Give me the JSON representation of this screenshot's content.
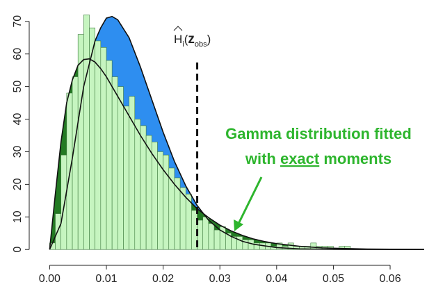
{
  "chart_data": {
    "type": "histogram",
    "bins": [
      0,
      0.001,
      0.002,
      0.003,
      0.004,
      0.005,
      0.006,
      0.007,
      0.008,
      0.009,
      0.01,
      0.011,
      0.012,
      0.013,
      0.014,
      0.015,
      0.016,
      0.017,
      0.018,
      0.019,
      0.02,
      0.021,
      0.022,
      0.023,
      0.024,
      0.025,
      0.026,
      0.027,
      0.028,
      0.029,
      0.03,
      0.031,
      0.032,
      0.033,
      0.034,
      0.035,
      0.036,
      0.037,
      0.038,
      0.039,
      0.04,
      0.041,
      0.042,
      0.043,
      0.044,
      0.045,
      0.046,
      0.047,
      0.048,
      0.049,
      0.05,
      0.051,
      0.052,
      0.053,
      0.054,
      0.055,
      0.056,
      0.057,
      0.058,
      0.059,
      0.06,
      0.061,
      0.062,
      0.063,
      0.064,
      0.065,
      0.066
    ],
    "counts": [
      2,
      11,
      29,
      48,
      53,
      66,
      72,
      68,
      64,
      62,
      58,
      53,
      50,
      44,
      47,
      40,
      38,
      35,
      33,
      30,
      29,
      25,
      22,
      19,
      17,
      12,
      9,
      10,
      8,
      6,
      7,
      5,
      4,
      4,
      3,
      3,
      2,
      2,
      2,
      1,
      2,
      1,
      2,
      1,
      1,
      1,
      2,
      1,
      1,
      1,
      0,
      1,
      1,
      0,
      0,
      0,
      0,
      0,
      0,
      0,
      0,
      0,
      0,
      0,
      0,
      0
    ],
    "color": "#c6f5c0",
    "curves": [
      {
        "color": "#2e8ef0",
        "x": [
          0,
          0.002,
          0.004,
          0.006,
          0.008,
          0.009,
          0.01,
          0.011,
          0.012,
          0.014,
          0.016,
          0.018,
          0.02,
          0.022,
          0.024,
          0.026,
          0.028,
          0.03,
          0.032,
          0.034,
          0.036,
          0.04,
          0.044,
          0.05,
          0.066
        ],
        "values": [
          0,
          8,
          28,
          50,
          64,
          68,
          71,
          71.5,
          70.5,
          65,
          56,
          46,
          36,
          27,
          19.5,
          13.5,
          9,
          6,
          4,
          2.5,
          1.6,
          0.6,
          0.2,
          0.05,
          0
        ]
      },
      {
        "color": "#237a23",
        "x": [
          0,
          0.001,
          0.002,
          0.003,
          0.004,
          0.005,
          0.006,
          0.007,
          0.008,
          0.009,
          0.01,
          0.012,
          0.014,
          0.016,
          0.018,
          0.02,
          0.022,
          0.024,
          0.026,
          0.028,
          0.03,
          0.032,
          0.034,
          0.036,
          0.038,
          0.04,
          0.044,
          0.048,
          0.052,
          0.056,
          0.06,
          0.066
        ],
        "values": [
          0,
          17,
          33,
          45,
          52,
          56.5,
          58.3,
          58.5,
          57.5,
          55.5,
          53,
          47,
          41,
          35,
          29.5,
          24.5,
          20,
          16,
          12.5,
          9.8,
          7.5,
          5.7,
          4.3,
          3.2,
          2.4,
          1.8,
          1,
          0.5,
          0.3,
          0.15,
          0.08,
          0.03
        ]
      }
    ],
    "vline": 0.026,
    "vline_label": {
      "base": "H",
      "sub": "i",
      "open": "(",
      "arg": "z",
      "arg_sub": "obs",
      "close": ")"
    },
    "annotation": {
      "line1": "Gamma distribution fitted",
      "line2_pre": "with ",
      "line2_em": "exact",
      "line2_post": " moments"
    },
    "xlim": [
      -0.0036,
      0.066
    ],
    "ylim": [
      -4,
      74
    ],
    "xticks": [
      {
        "value": 0,
        "label": "0.00"
      },
      0.01,
      0.02,
      0.03,
      0.04,
      0.05,
      0.06
    ],
    "yticks": [
      0,
      10,
      20,
      30,
      40,
      50,
      60,
      70
    ]
  }
}
